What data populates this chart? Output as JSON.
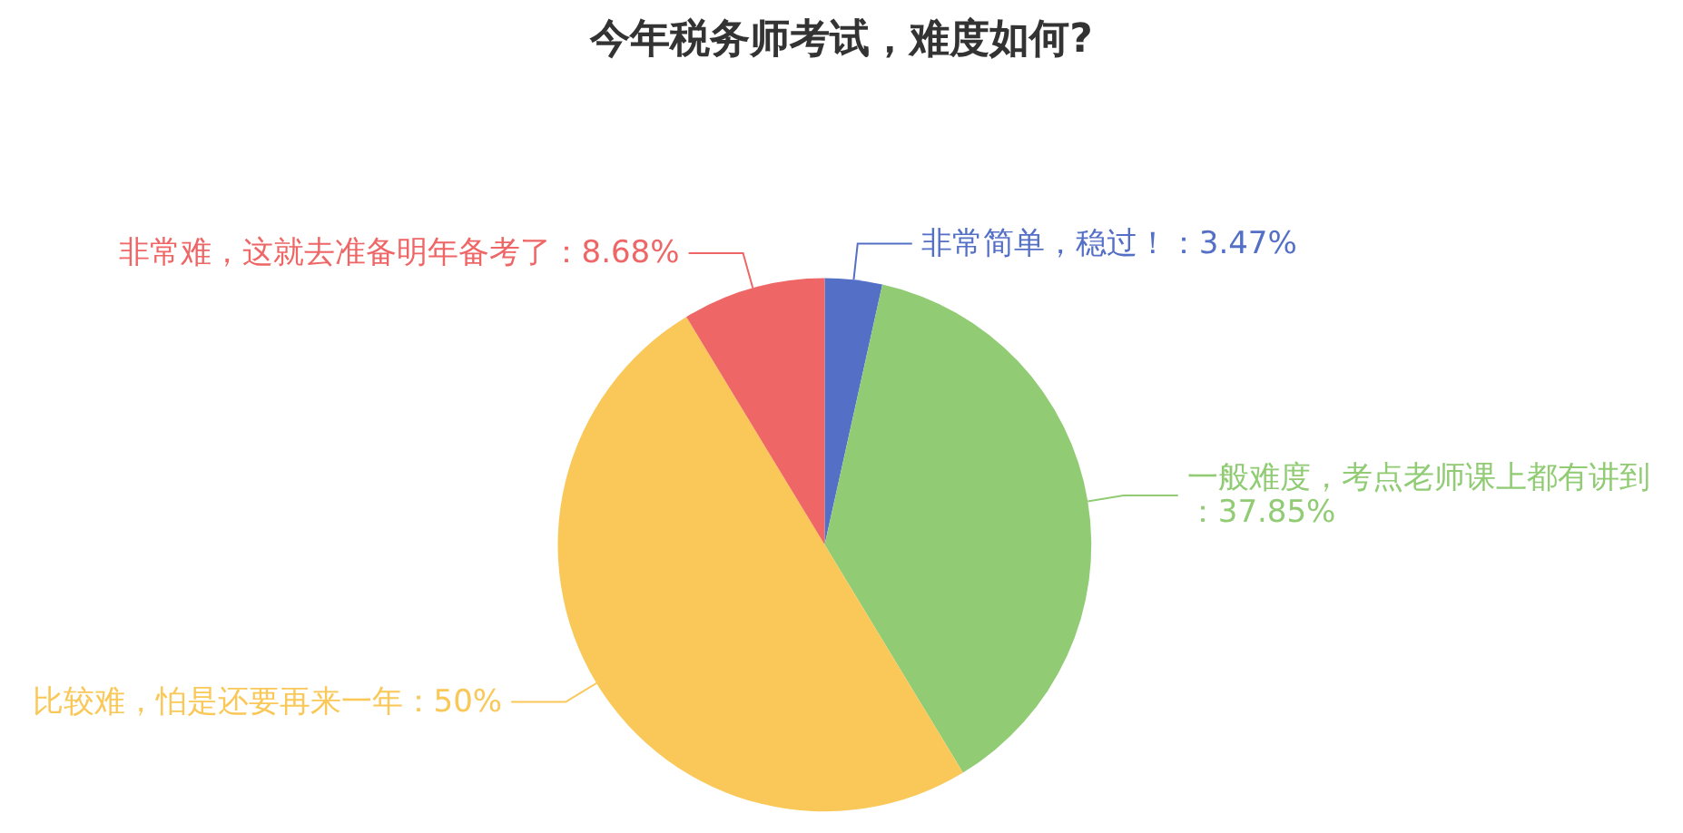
{
  "chart_data": {
    "type": "pie",
    "title": "今年税务师考试，难度如何?",
    "categories": [
      "非常简单，稳过！",
      "一般难度，考点老师课上都有讲到",
      "比较难，怕是还要再来一年",
      "非常难，这就去准备明年备考了"
    ],
    "values": [
      3.47,
      37.85,
      50,
      8.68
    ],
    "value_labels": [
      "：3.47%",
      "：37.85%",
      "：50%",
      "：8.68%"
    ],
    "colors": [
      "#5470c6",
      "#91cc75",
      "#fac858",
      "#ee6666"
    ]
  }
}
